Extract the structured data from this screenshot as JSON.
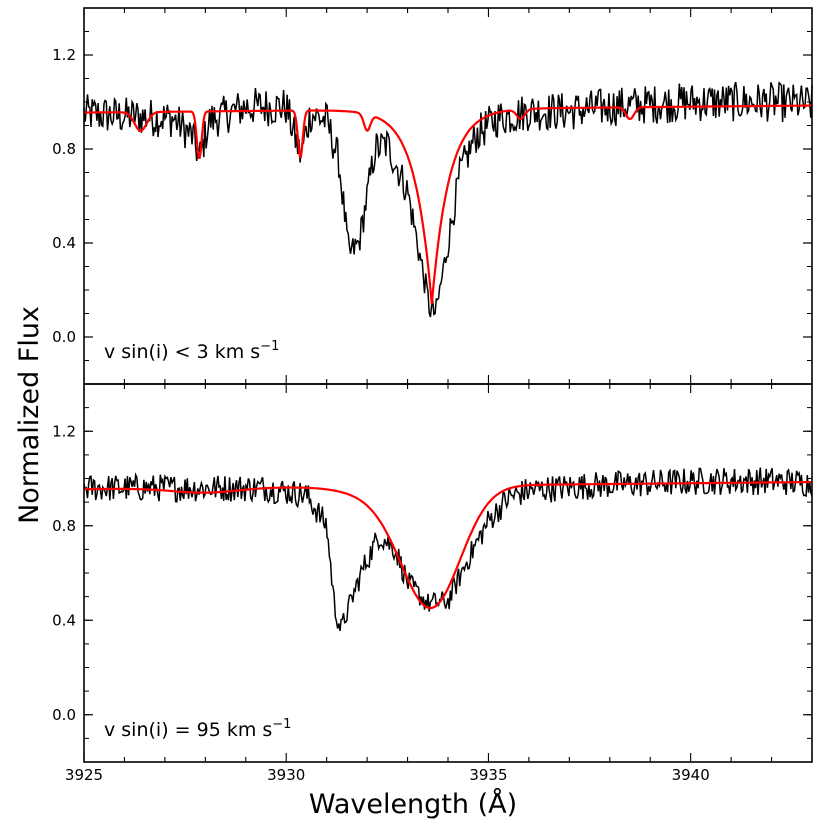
{
  "chart_data": {
    "type": "line",
    "xlabel": "Wavelength",
    "xlabel_unit": "(Å)",
    "ylabel": "Normalized Flux",
    "xlim": [
      3925,
      3943
    ],
    "ylim": [
      -0.2,
      1.4
    ],
    "x_ticks": [
      3925,
      3930,
      3935,
      3940
    ],
    "y_ticks": [
      0.0,
      0.4,
      0.8,
      1.2
    ],
    "series_colors": {
      "observed": "#000000",
      "model": "#ff0000"
    },
    "panels": [
      {
        "annotation": "v sin(i) < 3 km s",
        "annotation_sup": "−1",
        "model_kind": "narrow",
        "observed_anchors": [
          [
            3925.0,
            0.95
          ],
          [
            3926.0,
            0.94
          ],
          [
            3927.2,
            0.93
          ],
          [
            3927.7,
            0.85
          ],
          [
            3927.85,
            0.76
          ],
          [
            3928.1,
            0.92
          ],
          [
            3929.0,
            0.98
          ],
          [
            3930.0,
            0.98
          ],
          [
            3930.35,
            0.77
          ],
          [
            3930.6,
            0.95
          ],
          [
            3931.0,
            0.92
          ],
          [
            3931.3,
            0.75
          ],
          [
            3931.55,
            0.35
          ],
          [
            3931.8,
            0.4
          ],
          [
            3932.2,
            0.8
          ],
          [
            3932.5,
            0.82
          ],
          [
            3933.0,
            0.62
          ],
          [
            3933.3,
            0.35
          ],
          [
            3933.55,
            0.12
          ],
          [
            3933.7,
            0.1
          ],
          [
            3934.0,
            0.4
          ],
          [
            3934.3,
            0.7
          ],
          [
            3934.7,
            0.86
          ],
          [
            3935.2,
            0.93
          ],
          [
            3935.5,
            0.94
          ],
          [
            3936.0,
            0.96
          ],
          [
            3937.0,
            0.96
          ],
          [
            3938.0,
            0.98
          ],
          [
            3939.0,
            0.99
          ],
          [
            3940.0,
            1.0
          ],
          [
            3941.0,
            1.0
          ],
          [
            3942.0,
            1.0
          ],
          [
            3943.0,
            0.99
          ]
        ]
      },
      {
        "annotation": "v sin(i) = 95 km s",
        "annotation_sup": "−1",
        "model_kind": "broad",
        "observed_anchors": [
          [
            3925.0,
            0.96
          ],
          [
            3926.5,
            0.96
          ],
          [
            3928.0,
            0.96
          ],
          [
            3929.5,
            0.96
          ],
          [
            3930.5,
            0.93
          ],
          [
            3931.0,
            0.8
          ],
          [
            3931.2,
            0.45
          ],
          [
            3931.35,
            0.36
          ],
          [
            3931.6,
            0.48
          ],
          [
            3931.9,
            0.62
          ],
          [
            3932.3,
            0.76
          ],
          [
            3932.7,
            0.7
          ],
          [
            3933.0,
            0.56
          ],
          [
            3933.5,
            0.47
          ],
          [
            3934.0,
            0.48
          ],
          [
            3934.5,
            0.66
          ],
          [
            3935.0,
            0.82
          ],
          [
            3935.5,
            0.92
          ],
          [
            3936.0,
            0.95
          ],
          [
            3937.5,
            0.97
          ],
          [
            3939.0,
            0.98
          ],
          [
            3940.5,
            0.99
          ],
          [
            3942.0,
            0.99
          ],
          [
            3943.0,
            0.98
          ]
        ]
      }
    ]
  }
}
